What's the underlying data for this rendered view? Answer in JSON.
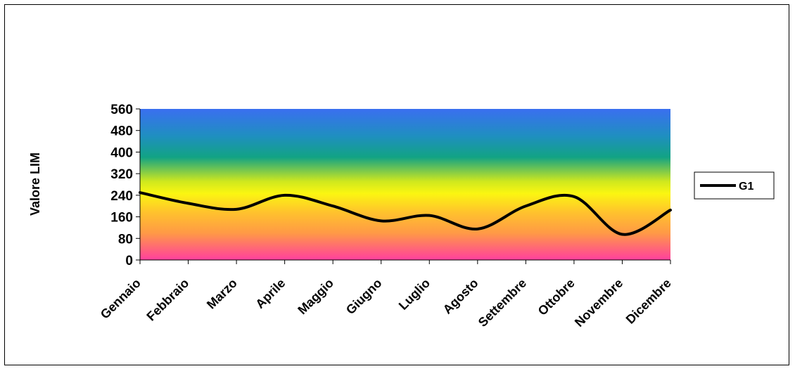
{
  "chart_data": {
    "type": "line",
    "ylabel": "Valore LIM",
    "xlabel": "",
    "ylim": [
      0,
      560
    ],
    "yticks": [
      "0",
      "80",
      "160",
      "240",
      "320",
      "400",
      "480",
      "560"
    ],
    "yticks_values": [
      0,
      80,
      160,
      240,
      320,
      400,
      480,
      560
    ],
    "categories": [
      "Gennaio",
      "Febbraio",
      "Marzo",
      "Aprile",
      "Maggio",
      "Giugno",
      "Luglio",
      "Agosto",
      "Settembre",
      "Ottobre",
      "Novembre",
      "Dicembre"
    ],
    "series": [
      {
        "name": "G1",
        "values": [
          250,
          210,
          188,
          240,
          200,
          145,
          165,
          115,
          200,
          235,
          95,
          185
        ]
      }
    ],
    "legend_position": "right",
    "background_gradient": [
      "#3c6fe0",
      "#12a38a",
      "#f6f615",
      "#ffa836",
      "#ff4f9a"
    ],
    "line_color": "#000000"
  }
}
